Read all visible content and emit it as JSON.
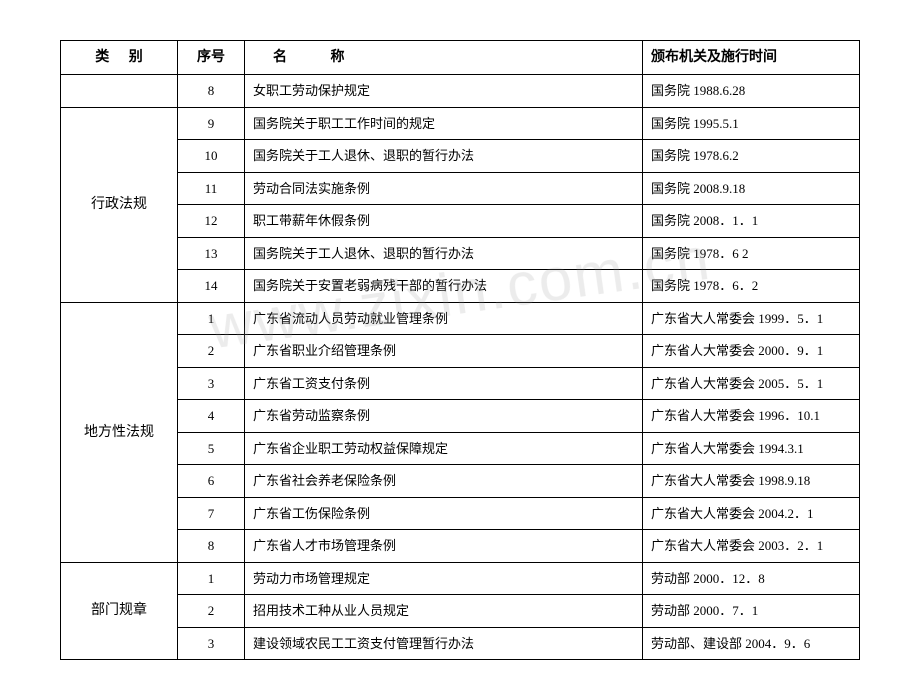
{
  "table": {
    "headers": {
      "category": "类 别",
      "seq": "序号",
      "name": "名  称",
      "issuer": "颁布机关及施行时间"
    },
    "groups": [
      {
        "category": "",
        "rowspan": 1,
        "rows": [
          {
            "seq": "8",
            "name": "女职工劳动保护规定",
            "issuer": "国务院 1988.6.28"
          }
        ]
      },
      {
        "category": "行政法规",
        "rowspan": 6,
        "rows": [
          {
            "seq": "9",
            "name": "国务院关于职工工作时间的规定",
            "issuer": "国务院 1995.5.1"
          },
          {
            "seq": "10",
            "name": "国务院关于工人退休、退职的暂行办法",
            "issuer": "国务院 1978.6.2"
          },
          {
            "seq": "11",
            "name": "劳动合同法实施条例",
            "issuer": "国务院 2008.9.18"
          },
          {
            "seq": "12",
            "name": "职工带薪年休假条例",
            "issuer": "国务院 2008．1．1"
          },
          {
            "seq": "13",
            "name": "国务院关于工人退休、退职的暂行办法",
            "issuer": "国务院 1978．6  2"
          },
          {
            "seq": "14",
            "name": "国务院关于安置老弱病残干部的暂行办法",
            "issuer": "国务院 1978．6．2"
          }
        ]
      },
      {
        "category": "地方性法规",
        "rowspan": 8,
        "rows": [
          {
            "seq": "1",
            "name": "广东省流动人员劳动就业管理条例",
            "issuer": "广东省大人常委会 1999．5．1"
          },
          {
            "seq": "2",
            "name": "广东省职业介绍管理条例",
            "issuer": "广东省人大常委会 2000．9．1"
          },
          {
            "seq": "3",
            "name": "广东省工资支付条例",
            "issuer": "广东省人大常委会 2005．5．1"
          },
          {
            "seq": "4",
            "name": "广东省劳动监察条例",
            "issuer": "广东省人大常委会 1996．10.1"
          },
          {
            "seq": "5",
            "name": "广东省企业职工劳动权益保障规定",
            "issuer": "广东省人大常委会 1994.3.1"
          },
          {
            "seq": "6",
            "name": "广东省社会养老保险条例",
            "issuer": "广东省大人常委会 1998.9.18"
          },
          {
            "seq": "7",
            "name": "广东省工伤保险条例",
            "issuer": "广东省大人常委会 2004.2．1"
          },
          {
            "seq": "8",
            "name": "广东省人才市场管理条例",
            "issuer": "广东省大人常委会 2003．2．1"
          }
        ]
      },
      {
        "category": "部门规章",
        "rowspan": 3,
        "rows": [
          {
            "seq": "1",
            "name": "劳动力市场管理规定",
            "issuer": "劳动部 2000．12．8"
          },
          {
            "seq": "2",
            "name": "招用技术工种从业人员规定",
            "issuer": "劳动部 2000．7．1"
          },
          {
            "seq": "3",
            "name": "建设领域农民工工资支付管理暂行办法",
            "issuer": "劳动部、建设部 2004．9．6"
          }
        ]
      }
    ]
  },
  "watermark": "www.zixin.com.cn"
}
